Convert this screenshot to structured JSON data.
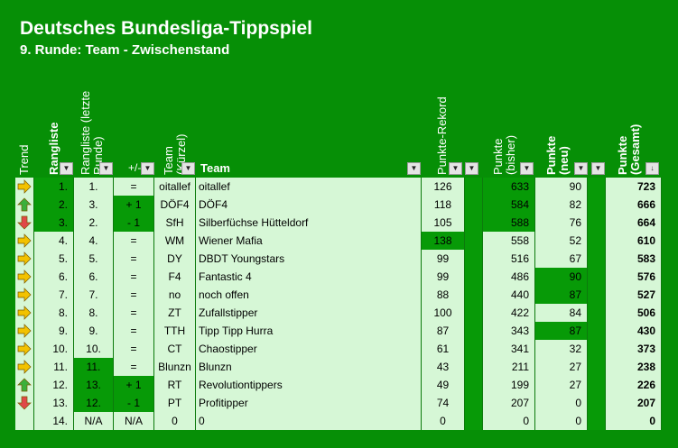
{
  "title": "Deutsches Bundesliga-Tippspiel",
  "subtitle": "9. Runde: Team - Zwischenstand",
  "headers": {
    "trend": "Trend",
    "rangliste": "Rangliste",
    "rangliste_prev": "Rangliste (letzte Runde)",
    "change": "+/-",
    "team_short": "Team (Kürzel)",
    "team": "Team",
    "rekord": "Punkte-Rekord",
    "punkte_bisher": "Punkte (bisher)",
    "punkte_neu": "Punkte (neu)",
    "punkte_gesamt": "Punkte (Gesamt)"
  },
  "colors": {
    "background": "#068f06",
    "light_cell": "#d6f7d6",
    "dark_cell": "#079a07",
    "up_arrow": "#3bb03b",
    "down_arrow": "#e04848",
    "side_arrow": "#f2c200"
  },
  "rows": [
    {
      "trend": "side",
      "rank": "1.",
      "prev": "1.",
      "change": "=",
      "short": "oitallef",
      "team": "oitallef",
      "rekord": "126",
      "bisher": "633",
      "neu": "90",
      "gesamt": "723",
      "hi": {
        "rank": true,
        "prev": false,
        "change": false,
        "rekord": false,
        "bisher": true,
        "neu": false
      }
    },
    {
      "trend": "up",
      "rank": "2.",
      "prev": "3.",
      "change": "+ 1",
      "short": "DÖF4",
      "team": "DÖF4",
      "rekord": "118",
      "bisher": "584",
      "neu": "82",
      "gesamt": "666",
      "hi": {
        "rank": true,
        "prev": false,
        "change": true,
        "rekord": false,
        "bisher": true,
        "neu": false
      }
    },
    {
      "trend": "down",
      "rank": "3.",
      "prev": "2.",
      "change": "- 1",
      "short": "SfH",
      "team": "Silberfüchse Hütteldorf",
      "rekord": "105",
      "bisher": "588",
      "neu": "76",
      "gesamt": "664",
      "hi": {
        "rank": true,
        "prev": false,
        "change": true,
        "rekord": false,
        "bisher": true,
        "neu": false
      }
    },
    {
      "trend": "side",
      "rank": "4.",
      "prev": "4.",
      "change": "=",
      "short": "WM",
      "team": "Wiener Mafia",
      "rekord": "138",
      "bisher": "558",
      "neu": "52",
      "gesamt": "610",
      "hi": {
        "rank": false,
        "prev": false,
        "change": false,
        "rekord": true,
        "bisher": false,
        "neu": false
      }
    },
    {
      "trend": "side",
      "rank": "5.",
      "prev": "5.",
      "change": "=",
      "short": "DY",
      "team": "DBDT Youngstars",
      "rekord": "99",
      "bisher": "516",
      "neu": "67",
      "gesamt": "583",
      "hi": {
        "rank": false,
        "prev": false,
        "change": false,
        "rekord": false,
        "bisher": false,
        "neu": false
      }
    },
    {
      "trend": "side",
      "rank": "6.",
      "prev": "6.",
      "change": "=",
      "short": "F4",
      "team": "Fantastic 4",
      "rekord": "99",
      "bisher": "486",
      "neu": "90",
      "gesamt": "576",
      "hi": {
        "rank": false,
        "prev": false,
        "change": false,
        "rekord": false,
        "bisher": false,
        "neu": true
      }
    },
    {
      "trend": "side",
      "rank": "7.",
      "prev": "7.",
      "change": "=",
      "short": "no",
      "team": "noch offen",
      "rekord": "88",
      "bisher": "440",
      "neu": "87",
      "gesamt": "527",
      "hi": {
        "rank": false,
        "prev": false,
        "change": false,
        "rekord": false,
        "bisher": false,
        "neu": true
      }
    },
    {
      "trend": "side",
      "rank": "8.",
      "prev": "8.",
      "change": "=",
      "short": "ZT",
      "team": "Zufallstipper",
      "rekord": "100",
      "bisher": "422",
      "neu": "84",
      "gesamt": "506",
      "hi": {
        "rank": false,
        "prev": false,
        "change": false,
        "rekord": false,
        "bisher": false,
        "neu": false
      }
    },
    {
      "trend": "side",
      "rank": "9.",
      "prev": "9.",
      "change": "=",
      "short": "TTH",
      "team": "Tipp Tipp Hurra",
      "rekord": "87",
      "bisher": "343",
      "neu": "87",
      "gesamt": "430",
      "hi": {
        "rank": false,
        "prev": false,
        "change": false,
        "rekord": false,
        "bisher": false,
        "neu": true
      }
    },
    {
      "trend": "side",
      "rank": "10.",
      "prev": "10.",
      "change": "=",
      "short": "CT",
      "team": "Chaostipper",
      "rekord": "61",
      "bisher": "341",
      "neu": "32",
      "gesamt": "373",
      "hi": {
        "rank": false,
        "prev": false,
        "change": false,
        "rekord": false,
        "bisher": false,
        "neu": false
      }
    },
    {
      "trend": "side",
      "rank": "11.",
      "prev": "11.",
      "change": "=",
      "short": "Blunzn",
      "team": "Blunzn",
      "rekord": "43",
      "bisher": "211",
      "neu": "27",
      "gesamt": "238",
      "hi": {
        "rank": false,
        "prev": true,
        "change": false,
        "rekord": false,
        "bisher": false,
        "neu": false
      }
    },
    {
      "trend": "up",
      "rank": "12.",
      "prev": "13.",
      "change": "+ 1",
      "short": "RT",
      "team": "Revolutiontippers",
      "rekord": "49",
      "bisher": "199",
      "neu": "27",
      "gesamt": "226",
      "hi": {
        "rank": false,
        "prev": true,
        "change": true,
        "rekord": false,
        "bisher": false,
        "neu": false
      }
    },
    {
      "trend": "down",
      "rank": "13.",
      "prev": "12.",
      "change": "- 1",
      "short": "PT",
      "team": "Profitipper",
      "rekord": "74",
      "bisher": "207",
      "neu": "0",
      "gesamt": "207",
      "hi": {
        "rank": false,
        "prev": true,
        "change": true,
        "rekord": false,
        "bisher": false,
        "neu": false
      }
    },
    {
      "trend": "none",
      "rank": "14.",
      "prev": "N/A",
      "change": "N/A",
      "short": "0",
      "team": "0",
      "rekord": "0",
      "bisher": "0",
      "neu": "0",
      "gesamt": "0",
      "hi": {
        "rank": false,
        "prev": false,
        "change": false,
        "rekord": false,
        "bisher": false,
        "neu": false
      }
    }
  ]
}
